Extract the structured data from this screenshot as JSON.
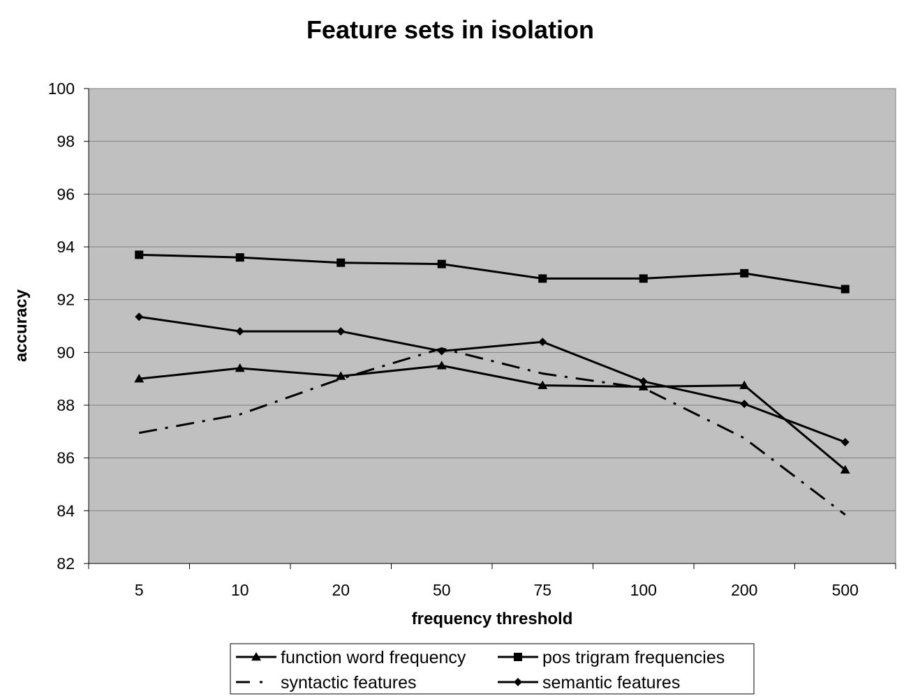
{
  "chart_data": {
    "type": "line",
    "title": "Feature sets in isolation",
    "xlabel": "frequency threshold",
    "ylabel": "accuracy",
    "categories": [
      "5",
      "10",
      "20",
      "50",
      "75",
      "100",
      "200",
      "500"
    ],
    "ylim": [
      82,
      100
    ],
    "yticks": [
      "82",
      "84",
      "86",
      "88",
      "90",
      "92",
      "94",
      "96",
      "98",
      "100"
    ],
    "grid": "horizontal",
    "legend_position": "bottom",
    "plot_background": "#c0c0c0",
    "line_color": "#000000",
    "series": [
      {
        "name": "function word frequency",
        "marker": "triangle",
        "dash": "solid",
        "values": [
          89.0,
          89.4,
          89.1,
          89.5,
          88.75,
          88.7,
          88.75,
          85.55
        ]
      },
      {
        "name": "pos trigram frequencies",
        "marker": "square",
        "dash": "solid",
        "values": [
          93.7,
          93.6,
          93.4,
          93.35,
          92.8,
          92.8,
          93.0,
          92.4
        ]
      },
      {
        "name": "syntactic features",
        "marker": "none",
        "dash": "dashdot",
        "values": [
          86.95,
          87.65,
          89.0,
          90.15,
          89.2,
          88.65,
          86.75,
          83.85
        ]
      },
      {
        "name": "semantic features",
        "marker": "diamond",
        "dash": "solid",
        "values": [
          91.35,
          90.8,
          90.8,
          90.05,
          90.4,
          88.9,
          88.05,
          86.6
        ]
      }
    ]
  }
}
